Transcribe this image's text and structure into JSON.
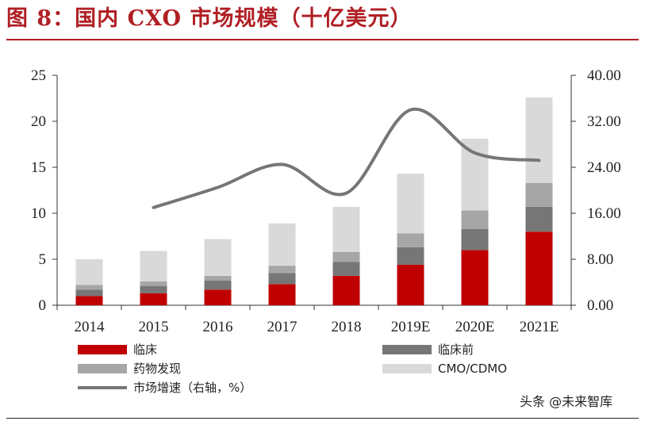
{
  "title": "图 8：国内 CXO 市场规模（十亿美元）",
  "chart_data": {
    "type": "bar",
    "stacked": true,
    "categories": [
      "2014",
      "2015",
      "2016",
      "2017",
      "2018",
      "2019E",
      "2020E",
      "2021E"
    ],
    "series": [
      {
        "name": "临床",
        "color": "#c00000",
        "values": [
          1.0,
          1.3,
          1.7,
          2.3,
          3.2,
          4.4,
          6.0,
          8.0
        ]
      },
      {
        "name": "临床前",
        "color": "#767676",
        "values": [
          0.7,
          0.8,
          1.0,
          1.2,
          1.5,
          1.9,
          2.3,
          2.7
        ]
      },
      {
        "name": "药物发现",
        "color": "#a6a6a6",
        "values": [
          0.5,
          0.5,
          0.5,
          0.8,
          1.1,
          1.5,
          2.0,
          2.6
        ]
      },
      {
        "name": "CMO/CDMO",
        "color": "#d9d9d9",
        "values": [
          2.8,
          3.3,
          4.0,
          4.6,
          4.9,
          6.5,
          7.8,
          9.3
        ]
      }
    ],
    "line": {
      "name": "市场增速（右轴，%）",
      "color": "#767676",
      "values": [
        null,
        17.0,
        20.5,
        24.5,
        19.5,
        34.0,
        26.5,
        25.2
      ]
    },
    "ylim_left": [
      0,
      25
    ],
    "yticks_left": [
      "0",
      "5",
      "10",
      "15",
      "20",
      "25"
    ],
    "ylim_right": [
      0,
      40
    ],
    "yticks_right": [
      "0.00",
      "8.00",
      "16.00",
      "24.00",
      "32.00",
      "40.00"
    ],
    "grid": false,
    "legend_position": "bottom"
  },
  "legend": {
    "items": [
      {
        "label": "临床",
        "color": "#c00000",
        "kind": "bar"
      },
      {
        "label": "临床前",
        "color": "#767676",
        "kind": "bar"
      },
      {
        "label": "药物发现",
        "color": "#a6a6a6",
        "kind": "bar"
      },
      {
        "label": "CMO/CDMO",
        "color": "#d9d9d9",
        "kind": "bar"
      },
      {
        "label": "市场增速（右轴，%）",
        "color": "#767676",
        "kind": "line"
      }
    ]
  },
  "watermark": "头条 @未来智库"
}
